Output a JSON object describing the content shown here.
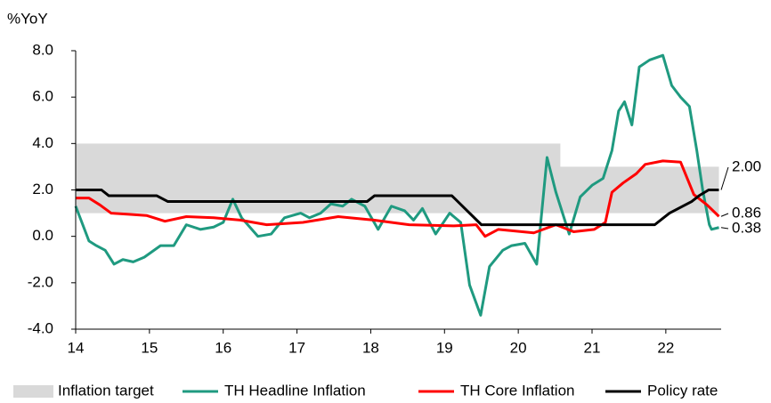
{
  "chart_data": {
    "type": "line",
    "y_label": "%YoY",
    "xlim": [
      14,
      22.75
    ],
    "xticks": [
      14,
      15,
      16,
      17,
      18,
      19,
      20,
      21,
      22
    ],
    "ylim": [
      -4,
      8
    ],
    "yticks": [
      {
        "value": 8,
        "label": "8.0"
      },
      {
        "value": 6,
        "label": "6.0"
      },
      {
        "value": 4,
        "label": "4.0"
      },
      {
        "value": 2,
        "label": "2.0"
      },
      {
        "value": 0,
        "label": "0.0"
      },
      {
        "value": -2,
        "label": "-2.0"
      },
      {
        "value": -4,
        "label": "-4.0"
      }
    ],
    "series": [
      {
        "name": "Inflation target",
        "type": "band",
        "color": "#d9d9d9",
        "x": [
          14,
          20.57,
          20.57,
          22.72
        ],
        "values": [
          4,
          4,
          3,
          3
        ],
        "lower": [
          1,
          1,
          1,
          1
        ]
      },
      {
        "name": "TH Headline Inflation",
        "color": "#1f9a80",
        "x": [
          14.0,
          14.18,
          14.28,
          14.4,
          14.52,
          14.64,
          14.78,
          14.93,
          15.15,
          15.33,
          15.5,
          15.69,
          15.87,
          16.0,
          16.13,
          16.25,
          16.47,
          16.65,
          16.83,
          17.05,
          17.17,
          17.32,
          17.46,
          17.62,
          17.74,
          17.92,
          18.1,
          18.28,
          18.46,
          18.58,
          18.7,
          18.88,
          19.07,
          19.22,
          19.34,
          19.49,
          19.61,
          19.79,
          19.91,
          20.09,
          20.25,
          20.39,
          20.51,
          20.69,
          20.84,
          21.0,
          21.15,
          21.27,
          21.36,
          21.44,
          21.54,
          21.64,
          21.78,
          21.96,
          22.08,
          22.2,
          22.32,
          22.42,
          22.5,
          22.59,
          22.62,
          22.72
        ],
        "values": [
          1.3,
          -0.2,
          -0.4,
          -0.6,
          -1.2,
          -1.0,
          -1.1,
          -0.9,
          -0.4,
          -0.4,
          0.5,
          0.3,
          0.4,
          0.6,
          1.6,
          0.8,
          0.0,
          0.1,
          0.8,
          1.0,
          0.8,
          1.0,
          1.4,
          1.3,
          1.6,
          1.3,
          0.3,
          1.3,
          1.1,
          0.7,
          1.2,
          0.1,
          1.0,
          0.6,
          -2.1,
          -3.4,
          -1.3,
          -0.6,
          -0.4,
          -0.3,
          -1.2,
          3.4,
          1.9,
          0.1,
          1.7,
          2.2,
          2.5,
          3.7,
          5.4,
          5.8,
          4.8,
          7.3,
          7.6,
          7.8,
          6.5,
          6.0,
          5.6,
          3.7,
          2.0,
          0.5,
          0.3,
          0.38
        ]
      },
      {
        "name": "TH Core Inflation",
        "color": "#ff0000",
        "x": [
          14.0,
          14.18,
          14.33,
          14.48,
          14.72,
          14.96,
          15.21,
          15.5,
          15.87,
          16.23,
          16.59,
          17.08,
          17.56,
          18.04,
          18.52,
          19.13,
          19.43,
          19.55,
          19.73,
          20.21,
          20.51,
          20.75,
          21.03,
          21.18,
          21.27,
          21.42,
          21.6,
          21.72,
          21.96,
          22.2,
          22.38,
          22.56,
          22.72
        ],
        "values": [
          1.65,
          1.65,
          1.35,
          1.0,
          0.95,
          0.9,
          0.65,
          0.85,
          0.8,
          0.7,
          0.5,
          0.6,
          0.85,
          0.7,
          0.5,
          0.45,
          0.5,
          0.0,
          0.3,
          0.15,
          0.5,
          0.2,
          0.3,
          0.6,
          1.9,
          2.3,
          2.7,
          3.1,
          3.25,
          3.2,
          1.8,
          1.35,
          0.86
        ]
      },
      {
        "name": "Policy rate",
        "color": "#000000",
        "x": [
          14.0,
          14.35,
          14.45,
          15.1,
          15.25,
          17.95,
          18.05,
          19.1,
          19.5,
          21.85,
          21.95,
          22.05,
          22.2,
          22.35,
          22.45,
          22.58,
          22.72
        ],
        "values": [
          2.0,
          2.0,
          1.75,
          1.75,
          1.5,
          1.5,
          1.75,
          1.75,
          0.5,
          0.5,
          0.75,
          1.0,
          1.25,
          1.5,
          1.75,
          2.0,
          2.0
        ]
      }
    ],
    "annotations": [
      {
        "value": 2,
        "label": "2.00"
      },
      {
        "value": 0.86,
        "label": "0.86"
      },
      {
        "value": 0.38,
        "label": "0.38"
      }
    ]
  }
}
